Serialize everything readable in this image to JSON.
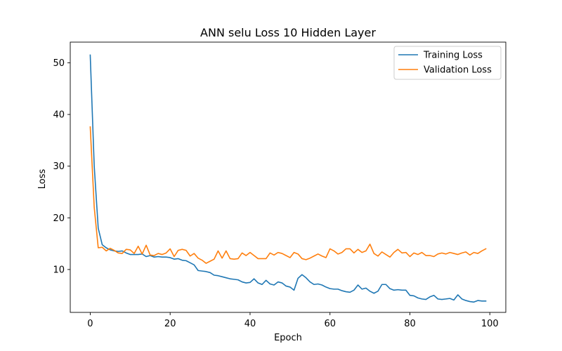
{
  "chart_data": {
    "type": "line",
    "title": "ANN selu Loss 10 Hidden Layer",
    "xlabel": "Epoch",
    "ylabel": "Loss",
    "xlim": [
      -5,
      104
    ],
    "ylim": [
      1.7,
      54.0
    ],
    "xticks": [
      0,
      20,
      40,
      60,
      80,
      100
    ],
    "yticks": [
      10,
      20,
      30,
      40,
      50
    ],
    "grid": false,
    "legend_position": "upper right",
    "series": [
      {
        "name": "Training Loss",
        "color": "#1f77b4",
        "x": [
          0,
          1,
          2,
          3,
          4,
          5,
          6,
          7,
          8,
          9,
          10,
          11,
          12,
          13,
          14,
          15,
          16,
          17,
          18,
          19,
          20,
          21,
          22,
          23,
          24,
          25,
          26,
          27,
          28,
          29,
          30,
          31,
          32,
          33,
          34,
          35,
          36,
          37,
          38,
          39,
          40,
          41,
          42,
          43,
          44,
          45,
          46,
          47,
          48,
          49,
          50,
          51,
          52,
          53,
          54,
          55,
          56,
          57,
          58,
          59,
          60,
          61,
          62,
          63,
          64,
          65,
          66,
          67,
          68,
          69,
          70,
          71,
          72,
          73,
          74,
          75,
          76,
          77,
          78,
          79,
          80,
          81,
          82,
          83,
          84,
          85,
          86,
          87,
          88,
          89,
          90,
          91,
          92,
          93,
          94,
          95,
          96,
          97,
          98,
          99
        ],
        "values": [
          51.5,
          30.0,
          18.0,
          14.8,
          14.2,
          13.8,
          13.6,
          13.5,
          13.6,
          13.2,
          12.9,
          12.9,
          12.9,
          13.0,
          12.5,
          12.7,
          12.4,
          12.5,
          12.4,
          12.4,
          12.3,
          12.0,
          12.1,
          11.8,
          11.7,
          11.3,
          10.9,
          9.8,
          9.7,
          9.6,
          9.4,
          8.9,
          8.8,
          8.6,
          8.4,
          8.2,
          8.1,
          8.0,
          7.6,
          7.4,
          7.5,
          8.2,
          7.4,
          7.1,
          7.9,
          7.2,
          7.0,
          7.6,
          7.4,
          6.8,
          6.6,
          6.0,
          8.3,
          9.0,
          8.4,
          7.6,
          7.1,
          7.2,
          7.0,
          6.6,
          6.3,
          6.2,
          6.2,
          5.9,
          5.7,
          5.6,
          6.0,
          7.0,
          6.2,
          6.4,
          5.8,
          5.4,
          5.8,
          7.1,
          7.1,
          6.3,
          6.0,
          6.1,
          6.0,
          6.0,
          5.0,
          4.9,
          4.5,
          4.3,
          4.2,
          4.7,
          5.0,
          4.3,
          4.2,
          4.3,
          4.4,
          4.1,
          5.1,
          4.3,
          4.0,
          3.8,
          3.7,
          4.0,
          3.9,
          3.9
        ]
      },
      {
        "name": "Validation Loss",
        "color": "#ff7f0e",
        "x": [
          0,
          1,
          2,
          3,
          4,
          5,
          6,
          7,
          8,
          9,
          10,
          11,
          12,
          13,
          14,
          15,
          16,
          17,
          18,
          19,
          20,
          21,
          22,
          23,
          24,
          25,
          26,
          27,
          28,
          29,
          30,
          31,
          32,
          33,
          34,
          35,
          36,
          37,
          38,
          39,
          40,
          41,
          42,
          43,
          44,
          45,
          46,
          47,
          48,
          49,
          50,
          51,
          52,
          53,
          54,
          55,
          56,
          57,
          58,
          59,
          60,
          61,
          62,
          63,
          64,
          65,
          66,
          67,
          68,
          69,
          70,
          71,
          72,
          73,
          74,
          75,
          76,
          77,
          78,
          79,
          80,
          81,
          82,
          83,
          84,
          85,
          86,
          87,
          88,
          89,
          90,
          91,
          92,
          93,
          94,
          95,
          96,
          97,
          98,
          99
        ],
        "values": [
          37.6,
          22.0,
          14.2,
          14.3,
          13.6,
          14.1,
          13.7,
          13.2,
          13.1,
          13.9,
          13.8,
          13.1,
          14.5,
          13.0,
          14.7,
          12.8,
          12.7,
          13.1,
          12.9,
          13.2,
          14.0,
          12.5,
          13.7,
          13.9,
          13.7,
          12.6,
          13.1,
          12.2,
          11.8,
          11.2,
          11.6,
          12.0,
          13.6,
          12.2,
          13.6,
          12.1,
          12.0,
          12.1,
          13.2,
          12.7,
          13.3,
          12.7,
          12.1,
          12.1,
          12.1,
          13.2,
          12.8,
          13.3,
          13.1,
          12.7,
          12.3,
          13.3,
          13.0,
          12.1,
          11.9,
          12.2,
          12.6,
          13.0,
          12.6,
          12.3,
          14.0,
          13.6,
          13.0,
          13.3,
          14.0,
          14.0,
          13.2,
          13.9,
          13.3,
          13.6,
          14.9,
          13.1,
          12.6,
          13.4,
          12.9,
          12.4,
          13.3,
          13.9,
          13.2,
          13.3,
          12.5,
          13.2,
          12.9,
          13.3,
          12.7,
          12.7,
          12.5,
          13.0,
          13.2,
          13.0,
          13.3,
          13.1,
          12.9,
          13.2,
          13.4,
          12.8,
          13.3,
          13.1,
          13.6,
          14.0
        ]
      }
    ]
  }
}
